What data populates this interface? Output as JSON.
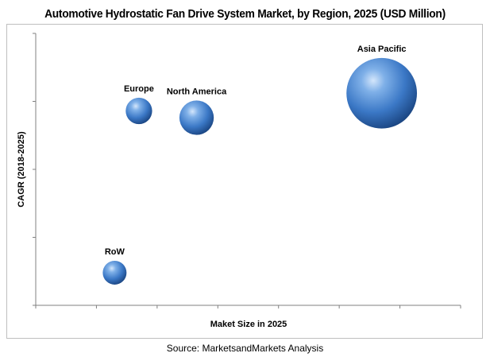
{
  "source": "Source: MarketsandMarkets Analysis",
  "colors": {
    "bubble_light": "#9cc3ef",
    "bubble_mid": "#3f7fcf",
    "bubble_dark": "#163e78",
    "axis": "#808080"
  },
  "chart_data": {
    "type": "bubble",
    "title": "Automotive Hydrostatic Fan Drive System Market, by Region, 2025 (USD Million)",
    "xlabel": "Maket Size in 2025",
    "ylabel": "CAGR (2018-2025)",
    "x_tick_labels_shown": false,
    "y_tick_labels_shown": false,
    "grid": false,
    "xlim": [
      0,
      7
    ],
    "ylim": [
      0,
      4
    ],
    "series": [
      {
        "label": "Europe",
        "x": 1.7,
        "y": 2.86,
        "size": 0.3
      },
      {
        "label": "North America",
        "x": 2.65,
        "y": 2.76,
        "size": 0.39
      },
      {
        "label": "Asia Pacific",
        "x": 5.7,
        "y": 3.12,
        "size": 0.8
      },
      {
        "label": "RoW",
        "x": 1.3,
        "y": 0.48,
        "size": 0.27
      }
    ]
  }
}
